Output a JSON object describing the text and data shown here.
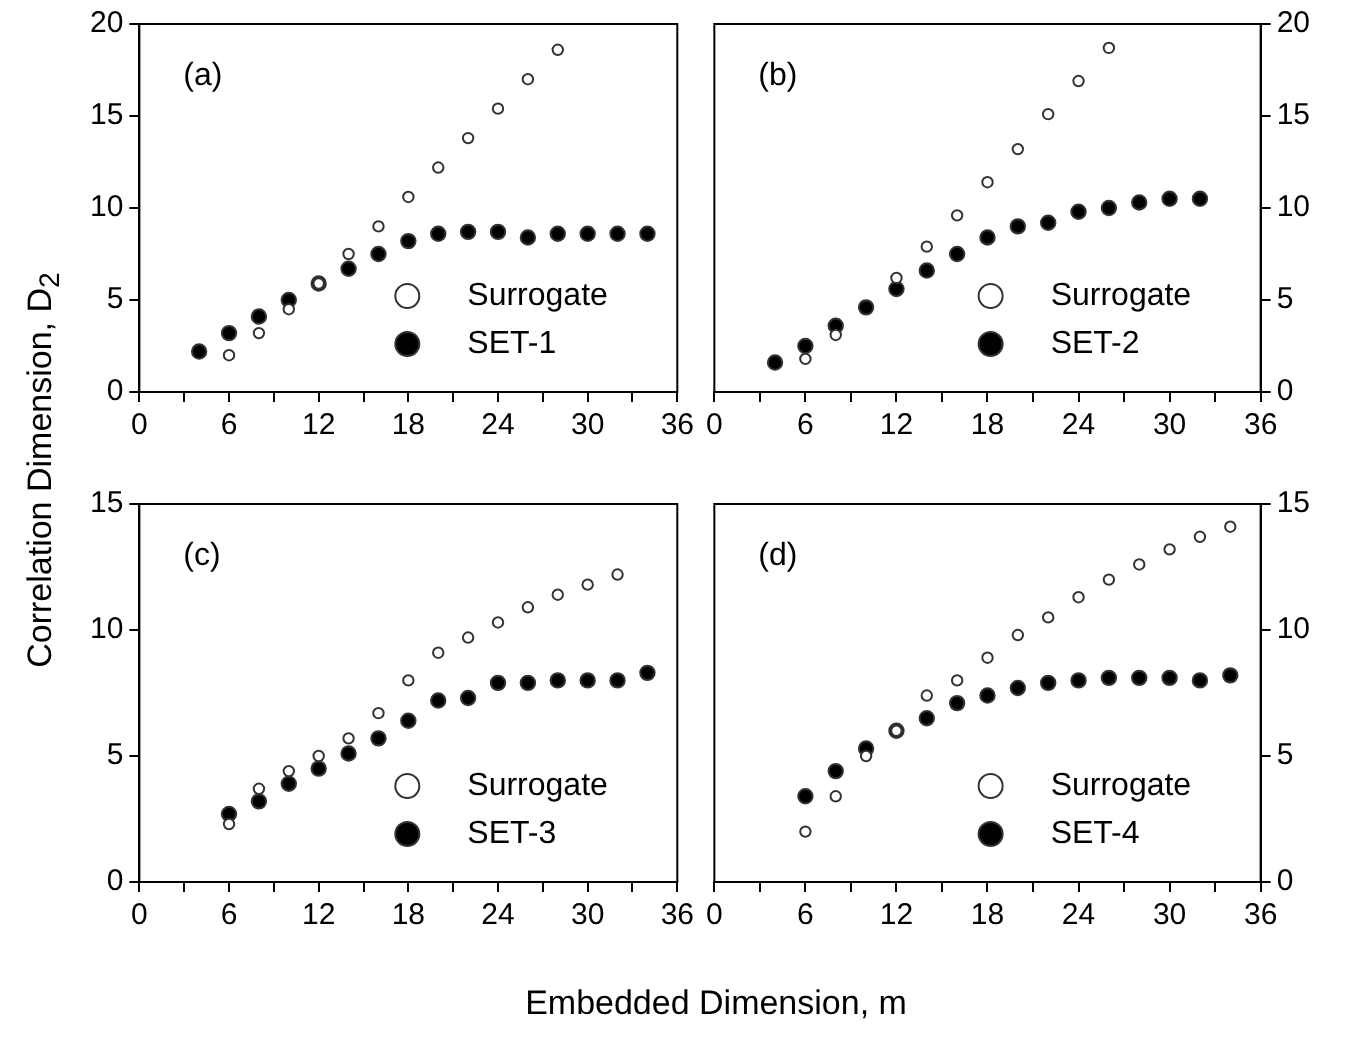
{
  "chart_data": [
    {
      "type": "scatter",
      "ylabel": "Correlation Dimension, D$_{2}$",
      "annotations": [
        "(a)"
      ],
      "xlim": [
        0,
        36
      ],
      "xticks": [
        0,
        {
          "value": 3,
          "label": null
        },
        6,
        {
          "value": 9,
          "label": null
        },
        12,
        {
          "value": 15,
          "label": null
        },
        18,
        {
          "value": 21,
          "label": null
        },
        24,
        {
          "value": 27,
          "label": null
        },
        30,
        {
          "value": 33,
          "label": null
        },
        36
      ],
      "ylim": [
        0,
        20
      ],
      "yticks": [
        0,
        5,
        10,
        15,
        20
      ],
      "grid": false,
      "legend": "bottom right",
      "marker": "circle",
      "series": [
        {
          "name": "Surrogate",
          "color": "#ffffff",
          "x": [
            6,
            8,
            10,
            12,
            14,
            16,
            18,
            20,
            22,
            24,
            26,
            28
          ],
          "values": [
            2.0,
            3.2,
            4.5,
            5.9,
            7.5,
            9.0,
            10.6,
            12.2,
            13.8,
            15.4,
            17.0,
            18.6
          ]
        },
        {
          "name": "SET-1",
          "color": "#000000",
          "x": [
            4,
            6,
            8,
            10,
            12,
            14,
            16,
            18,
            20,
            22,
            24,
            26,
            28,
            30,
            32,
            34
          ],
          "values": [
            2.2,
            3.2,
            4.1,
            5.0,
            5.9,
            6.7,
            7.5,
            8.2,
            8.6,
            8.7,
            8.7,
            8.4,
            8.6,
            8.6,
            8.6,
            8.6
          ]
        }
      ]
    },
    {
      "type": "scatter",
      "annotations": [
        "(b)"
      ],
      "xlim": [
        0,
        36
      ],
      "xticks": [
        0,
        {
          "value": 3,
          "label": null
        },
        6,
        {
          "value": 9,
          "label": null
        },
        12,
        {
          "value": 15,
          "label": null
        },
        18,
        {
          "value": 21,
          "label": null
        },
        24,
        {
          "value": 27,
          "label": null
        },
        30,
        {
          "value": 33,
          "label": null
        },
        36
      ],
      "y2lim": [
        0,
        20
      ],
      "y2ticks": [
        0,
        5,
        10,
        15,
        20
      ],
      "grid": false,
      "legend": "bottom right",
      "marker": "circle",
      "series": [
        {
          "name": "Surrogate",
          "color": "#ffffff",
          "axis": "y2",
          "x": [
            6,
            8,
            12,
            14,
            16,
            18,
            20,
            22,
            24,
            26
          ],
          "values": [
            1.8,
            3.1,
            6.2,
            7.9,
            9.6,
            11.4,
            13.2,
            15.1,
            16.9,
            18.7
          ]
        },
        {
          "name": "SET-2",
          "color": "#000000",
          "axis": "y2",
          "x": [
            4,
            6,
            8,
            10,
            12,
            14,
            16,
            18,
            20,
            22,
            24,
            26,
            28,
            30,
            32
          ],
          "values": [
            1.6,
            2.5,
            3.6,
            4.6,
            5.6,
            6.6,
            7.5,
            8.4,
            9.0,
            9.2,
            9.8,
            10.0,
            10.3,
            10.5,
            10.5
          ]
        }
      ]
    },
    {
      "type": "scatter",
      "xlabel": "Embedded Dimension, m",
      "annotations": [
        "(c)"
      ],
      "xlim": [
        0,
        36
      ],
      "xticks": [
        0,
        {
          "value": 3,
          "label": null
        },
        6,
        {
          "value": 9,
          "label": null
        },
        12,
        {
          "value": 15,
          "label": null
        },
        18,
        {
          "value": 21,
          "label": null
        },
        24,
        {
          "value": 27,
          "label": null
        },
        30,
        {
          "value": 33,
          "label": null
        },
        36
      ],
      "ylim": [
        0,
        15
      ],
      "yticks": [
        0,
        5,
        10,
        15
      ],
      "grid": false,
      "legend": "bottom right",
      "marker": "circle",
      "series": [
        {
          "name": "Surrogate",
          "color": "#ffffff",
          "x": [
            6,
            8,
            10,
            12,
            14,
            16,
            18,
            20,
            22,
            24,
            26,
            28,
            30,
            32
          ],
          "values": [
            2.3,
            3.7,
            4.4,
            5.0,
            5.7,
            6.7,
            8.0,
            9.1,
            9.7,
            10.3,
            10.9,
            11.4,
            11.8,
            12.2
          ]
        },
        {
          "name": "SET-3",
          "color": "#000000",
          "x": [
            6,
            8,
            10,
            12,
            14,
            16,
            18,
            20,
            22,
            24,
            26,
            28,
            30,
            32,
            34
          ],
          "values": [
            2.7,
            3.2,
            3.9,
            4.5,
            5.1,
            5.7,
            6.4,
            7.2,
            7.3,
            7.9,
            7.9,
            8.0,
            8.0,
            8.0,
            8.3
          ]
        }
      ]
    },
    {
      "type": "scatter",
      "annotations": [
        "(d)"
      ],
      "xlim": [
        0,
        36
      ],
      "xticks": [
        0,
        {
          "value": 3,
          "label": null
        },
        6,
        {
          "value": 9,
          "label": null
        },
        12,
        {
          "value": 15,
          "label": null
        },
        18,
        {
          "value": 21,
          "label": null
        },
        24,
        {
          "value": 27,
          "label": null
        },
        30,
        {
          "value": 33,
          "label": null
        },
        36
      ],
      "y2lim": [
        0,
        15
      ],
      "y2ticks": [
        0,
        5,
        10,
        15
      ],
      "grid": false,
      "legend": "bottom right",
      "marker": "circle",
      "series": [
        {
          "name": "Surrogate",
          "color": "#ffffff",
          "axis": "y2",
          "x": [
            6,
            8,
            10,
            12,
            14,
            16,
            18,
            20,
            22,
            24,
            26,
            28,
            30,
            32,
            34
          ],
          "values": [
            2.0,
            3.4,
            5.0,
            6.0,
            7.4,
            8.0,
            8.9,
            9.8,
            10.5,
            11.3,
            12.0,
            12.6,
            13.2,
            13.7,
            14.1
          ]
        },
        {
          "name": "SET-4",
          "color": "#000000",
          "axis": "y2",
          "x": [
            6,
            8,
            10,
            12,
            14,
            16,
            18,
            20,
            22,
            24,
            26,
            28,
            30,
            32,
            34
          ],
          "values": [
            3.4,
            4.4,
            5.3,
            6.0,
            6.5,
            7.1,
            7.4,
            7.7,
            7.9,
            8.0,
            8.1,
            8.1,
            8.1,
            8.0,
            8.2
          ]
        }
      ]
    }
  ]
}
